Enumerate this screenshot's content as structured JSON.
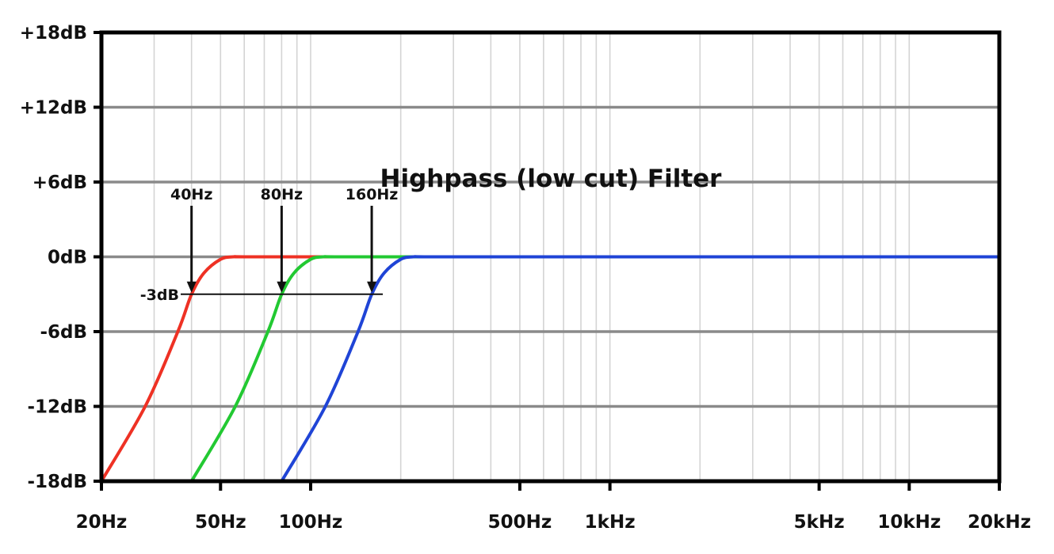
{
  "chart_data": {
    "type": "line",
    "title": "Highpass (low cut) Filter",
    "x_scale": "log",
    "xlim": [
      20,
      20000
    ],
    "ylim": [
      -18,
      18
    ],
    "y_ticks": [
      18,
      12,
      6,
      0,
      -6,
      -12,
      -18
    ],
    "y_tick_labels": [
      "+18dB",
      "+12dB",
      "+6dB",
      "0dB",
      "-6dB",
      "-12dB",
      "-18dB"
    ],
    "x_ticks": [
      20,
      50,
      100,
      500,
      1000,
      5000,
      10000,
      20000
    ],
    "x_tick_labels": [
      "20Hz",
      "50Hz",
      "100Hz",
      "500Hz",
      "1kHz",
      "5kHz",
      "10kHz",
      "20kHz"
    ],
    "grid": true,
    "reference_line": {
      "label": "-3dB",
      "y": -3,
      "x_range": [
        40,
        160
      ]
    },
    "series": [
      {
        "color": "#ee3124",
        "x": [
          20,
          28,
          36,
          40,
          44,
          50,
          55,
          60,
          100,
          20000
        ],
        "y": [
          -18,
          -12,
          -6,
          -3,
          -1.3,
          -0.2,
          0,
          0,
          0,
          0
        ]
      },
      {
        "color": "#22c932",
        "x": [
          40,
          56,
          72,
          80,
          88,
          100,
          110,
          120,
          200,
          20000
        ],
        "y": [
          -18,
          -12,
          -6,
          -3,
          -1.3,
          -0.2,
          0,
          0,
          0,
          0
        ]
      },
      {
        "color": "#1f44d6",
        "x": [
          80,
          112,
          144,
          160,
          176,
          200,
          220,
          240,
          400,
          20000
        ],
        "y": [
          -18,
          -12,
          -6,
          -3,
          -1.3,
          -0.2,
          0,
          0,
          0,
          0
        ]
      }
    ],
    "annotations": [
      {
        "label": "40Hz",
        "x": 40,
        "y": -3
      },
      {
        "label": "80Hz",
        "x": 80,
        "y": -3
      },
      {
        "label": "160Hz",
        "x": 160,
        "y": -3
      }
    ]
  }
}
